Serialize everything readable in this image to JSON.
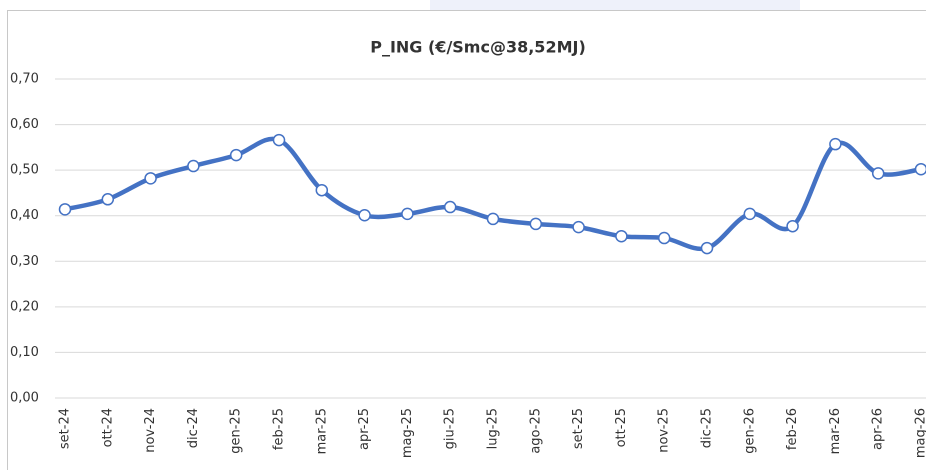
{
  "chart_data": {
    "type": "line",
    "title": "P_ING (€/Smc@38,52MJ)",
    "categories": [
      "set-24",
      "ott-24",
      "nov-24",
      "dic-24",
      "gen-25",
      "feb-25",
      "mar-25",
      "apr-25",
      "mag-25",
      "giu-25",
      "lug-25",
      "ago-25",
      "set-25",
      "ott-25",
      "nov-25",
      "dic-25",
      "gen-26",
      "feb-26",
      "mar-26",
      "apr-26",
      "mag-26"
    ],
    "series": [
      {
        "name": "P_ING",
        "color": "#4472c4",
        "values": [
          0.414,
          0.436,
          0.482,
          0.509,
          0.533,
          0.566,
          0.456,
          0.401,
          0.404,
          0.419,
          0.393,
          0.382,
          0.375,
          0.355,
          0.351,
          0.329,
          0.404,
          0.377,
          0.557,
          0.493,
          0.502
        ]
      }
    ],
    "ylim": [
      0,
      0.7
    ],
    "yticks": [
      {
        "value": 0,
        "label": "0,00"
      },
      {
        "value": 0.1,
        "label": "0,10"
      },
      {
        "value": 0.2,
        "label": "0,20"
      },
      {
        "value": 0.3,
        "label": "0,30"
      },
      {
        "value": 0.4,
        "label": "0,40"
      },
      {
        "value": 0.5,
        "label": "0,50"
      },
      {
        "value": 0.6,
        "label": "0,60"
      },
      {
        "value": 0.7,
        "label": "0,70"
      }
    ],
    "grid": true
  }
}
